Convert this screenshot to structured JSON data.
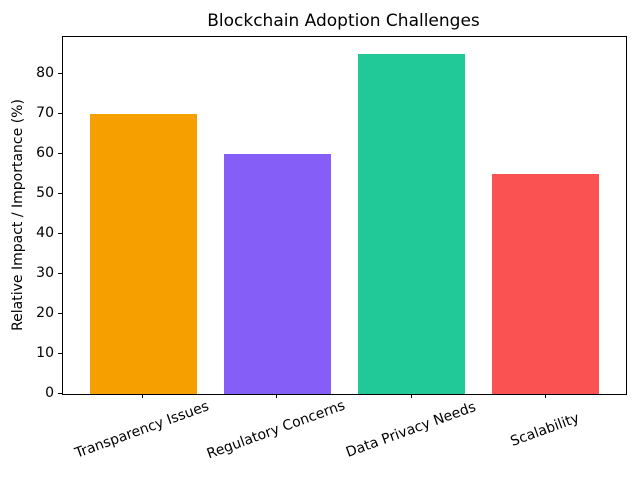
{
  "figure": {
    "background_color": "#ffffff",
    "text_color": "#000000"
  },
  "chart_data": {
    "type": "bar",
    "title": "Blockchain Adoption Challenges",
    "xlabel": "",
    "ylabel": "Relative Impact / Importance (%)",
    "categories": [
      "Transparency Issues",
      "Regulatory Concerns",
      "Data Privacy Needs",
      "Scalability"
    ],
    "values": [
      70,
      60,
      85,
      55
    ],
    "bar_colors": [
      "#f59f00",
      "#845ef7",
      "#20c997",
      "#fa5252"
    ],
    "ylim": [
      0,
      89.25
    ],
    "yticks": [
      0,
      10,
      20,
      30,
      40,
      50,
      60,
      70,
      80
    ],
    "x_tick_rotation_deg": 20,
    "grid": false,
    "legend": null
  }
}
